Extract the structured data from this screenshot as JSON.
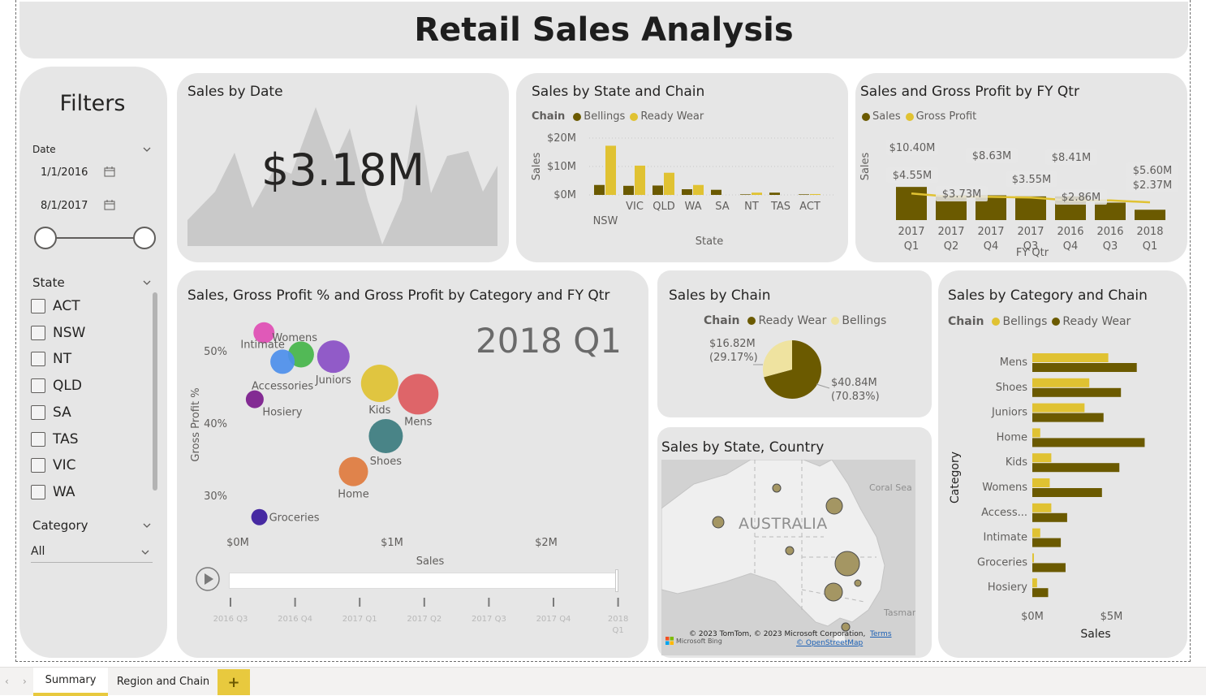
{
  "report": {
    "title": "Retail Sales Analysis"
  },
  "filters": {
    "title": "Filters",
    "date_label": "Date",
    "date_start": "1/1/2016",
    "date_end": "8/1/2017",
    "state_label": "State",
    "states": [
      "ACT",
      "NSW",
      "NT",
      "QLD",
      "SA",
      "TAS",
      "VIC",
      "WA"
    ],
    "category_label": "Category",
    "category_value": "All"
  },
  "sales_by_date": {
    "title": "Sales by Date",
    "kpi": "$3.18M"
  },
  "sales_by_state_chain": {
    "title": "Sales by State and Chain",
    "legend_title": "Chain",
    "ylabel": "Sales",
    "xlabel": "State",
    "y_ticks": [
      "$20M",
      "$10M",
      "$0M"
    ]
  },
  "sales_gp_fyqtr": {
    "title": "Sales and Gross Profit by FY Qtr",
    "ylabel": "Sales",
    "xlabel": "FY Qtr",
    "labels_sales": [
      "$10.40M",
      "$8.63M",
      "$8.41M",
      "$5.60M"
    ],
    "labels_gp": [
      "$4.55M",
      "$3.73M",
      "$3.55M",
      "$2.86M",
      "$2.37M"
    ]
  },
  "scatter": {
    "title": "Sales, Gross Profit % and Gross Profit by Category and FY Qtr",
    "play_label": "2018 Q1",
    "ylabel": "Gross Profit %",
    "xlabel": "Sales",
    "y_ticks": [
      "50%",
      "40%",
      "30%"
    ],
    "x_ticks": [
      "$0M",
      "$1M",
      "$2M"
    ],
    "timeline": [
      "2016 Q3",
      "2016 Q4",
      "2017 Q1",
      "2017 Q2",
      "2017 Q3",
      "2017 Q4",
      "2018 Q1"
    ]
  },
  "sales_by_chain": {
    "title": "Sales by Chain",
    "legend_title": "Chain",
    "label_small": "$16.82M",
    "label_small_pct": "(29.17%)",
    "label_large": "$40.84M",
    "label_large_pct": "(70.83%)"
  },
  "map": {
    "title": "Sales by State, Country",
    "country_label": "AUSTRALIA",
    "sea1": "Coral Sea",
    "sea2": "Tasman",
    "attribution": "© 2023 TomTom, © 2023 Microsoft Corporation,",
    "terms": "Terms",
    "osm": "© OpenStreetMap",
    "bing": "Microsoft Bing"
  },
  "sales_by_cat_chain": {
    "title": "Sales by Category and Chain",
    "legend_title": "Chain",
    "ylabel": "Category",
    "xlabel": "Sales",
    "x_ticks": [
      "$0M",
      "$5M"
    ]
  },
  "tabs": {
    "summary": "Summary",
    "region": "Region and Chain",
    "add": "+"
  },
  "colors": {
    "bellings": "#e0c232",
    "ready_wear": "#6b5a00",
    "panel": "#e6e6e6"
  },
  "chart_data": [
    {
      "type": "bar",
      "title": "Sales by State and Chain",
      "xlabel": "State",
      "ylabel": "Sales",
      "categories": [
        "NSW",
        "VIC",
        "QLD",
        "WA",
        "SA",
        "NT",
        "TAS",
        "ACT"
      ],
      "series": [
        {
          "name": "Bellings",
          "values": [
            3.5,
            3.2,
            3.3,
            2.0,
            1.8,
            0.2,
            0.8,
            0.2
          ]
        },
        {
          "name": "Ready Wear",
          "values": [
            17.3,
            10.3,
            7.8,
            3.5,
            0,
            0.8,
            0,
            0.3
          ]
        }
      ],
      "ylim": [
        0,
        20
      ]
    },
    {
      "type": "bar",
      "title": "Sales and Gross Profit by FY Qtr",
      "xlabel": "FY Qtr",
      "ylabel": "Sales",
      "categories": [
        "2017 Q1",
        "2017 Q2",
        "2017 Q4",
        "2017 Q3",
        "2016 Q4",
        "2016 Q3",
        "2018 Q1"
      ],
      "series": [
        {
          "name": "Sales",
          "values": [
            10.4,
            8.63,
            8.63,
            8.41,
            8.41,
            7.1,
            5.6
          ]
        },
        {
          "name": "Gross Profit",
          "values": [
            4.55,
            3.73,
            3.73,
            3.55,
            2.86,
            2.86,
            2.37
          ]
        }
      ]
    },
    {
      "type": "scatter",
      "title": "Sales, Gross Profit % and Gross Profit by Category and FY Qtr",
      "xlabel": "Sales",
      "ylabel": "Gross Profit %",
      "points": [
        {
          "name": "Womens",
          "x": 0.17,
          "y": 52.5,
          "color": "#e04db4"
        },
        {
          "name": "Intimate",
          "x": 0.41,
          "y": 49.5,
          "color": "#45b54a"
        },
        {
          "name": "Juniors",
          "x": 0.62,
          "y": 49.2,
          "color": "#8a4fc6"
        },
        {
          "name": "Accessories",
          "x": 0.29,
          "y": 48.5,
          "color": "#4d8fec"
        },
        {
          "name": "Kids",
          "x": 0.92,
          "y": 45.5,
          "color": "#e0c232"
        },
        {
          "name": "Mens",
          "x": 1.17,
          "y": 44.0,
          "color": "#dd5a5e"
        },
        {
          "name": "Hosiery",
          "x": 0.11,
          "y": 43.3,
          "color": "#7b1b8c"
        },
        {
          "name": "Shoes",
          "x": 0.96,
          "y": 38.2,
          "color": "#3c7c7f"
        },
        {
          "name": "Home",
          "x": 0.75,
          "y": 33.3,
          "color": "#e07b3e"
        },
        {
          "name": "Groceries",
          "x": 0.14,
          "y": 27.0,
          "color": "#3a1a9c"
        }
      ],
      "xlim": [
        0,
        2.2
      ],
      "ylim": [
        25,
        55
      ]
    },
    {
      "type": "pie",
      "title": "Sales by Chain",
      "categories": [
        "Ready Wear",
        "Bellings"
      ],
      "values": [
        40.84,
        16.82
      ]
    },
    {
      "type": "bar",
      "title": "Sales by Category and Chain",
      "xlabel": "Sales",
      "ylabel": "Category",
      "categories": [
        "Mens",
        "Shoes",
        "Juniors",
        "Home",
        "Kids",
        "Womens",
        "Access...",
        "Intimate",
        "Groceries",
        "Hosiery"
      ],
      "series": [
        {
          "name": "Bellings",
          "values": [
            4.8,
            3.6,
            3.3,
            0.5,
            1.2,
            1.1,
            1.2,
            0.5,
            0.1,
            0.3
          ]
        },
        {
          "name": "Ready Wear",
          "values": [
            6.6,
            5.6,
            4.5,
            7.1,
            5.5,
            4.4,
            2.2,
            1.8,
            2.1,
            1.0
          ]
        }
      ],
      "xlim": [
        0,
        7.5
      ]
    }
  ]
}
